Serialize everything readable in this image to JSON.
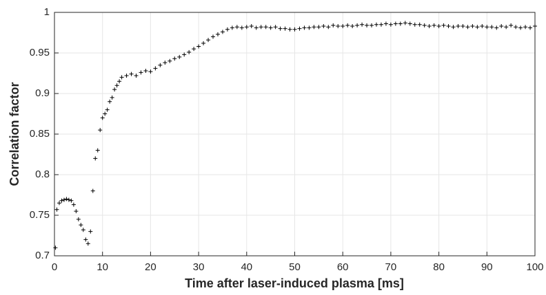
{
  "chart_data": {
    "type": "scatter",
    "marker": "+",
    "color": "#000000",
    "grid": true,
    "xlabel": "Time after laser-induced plasma [ms]",
    "ylabel": "Correlation factor",
    "xlim": [
      0,
      100
    ],
    "xticks": [
      0,
      10,
      20,
      30,
      40,
      50,
      60,
      70,
      80,
      90,
      100
    ],
    "ylim": [
      0.7,
      1
    ],
    "yticks": [
      0.7,
      0.75,
      0.8,
      0.85,
      0.9,
      0.95,
      1
    ],
    "series": [
      {
        "x": [
          0.2,
          0.5,
          1,
          1.5,
          2,
          2.5,
          3,
          3.5,
          4,
          4.5,
          5,
          5.5,
          6,
          6.5,
          7,
          7.5,
          8,
          8.5,
          9,
          9.5,
          10,
          10.5,
          11,
          11.5,
          12,
          12.5,
          13,
          13.5,
          14,
          15,
          16,
          17,
          18,
          19,
          20,
          21,
          22,
          23,
          24,
          25,
          26,
          27,
          28,
          29,
          30,
          31,
          32,
          33,
          34,
          35,
          36,
          37,
          38,
          39,
          40,
          41,
          42,
          43,
          44,
          45,
          46,
          47,
          48,
          49,
          50,
          51,
          52,
          53,
          54,
          55,
          56,
          57,
          58,
          59,
          60,
          61,
          62,
          63,
          64,
          65,
          66,
          67,
          68,
          69,
          70,
          71,
          72,
          73,
          74,
          75,
          76,
          77,
          78,
          79,
          80,
          81,
          82,
          83,
          84,
          85,
          86,
          87,
          88,
          89,
          90,
          91,
          92,
          93,
          94,
          95,
          96,
          97,
          98,
          99,
          100
        ],
        "values": [
          0.71,
          0.757,
          0.765,
          0.768,
          0.769,
          0.77,
          0.769,
          0.768,
          0.763,
          0.755,
          0.745,
          0.738,
          0.732,
          0.72,
          0.715,
          0.73,
          0.78,
          0.82,
          0.83,
          0.855,
          0.87,
          0.875,
          0.88,
          0.89,
          0.895,
          0.905,
          0.91,
          0.915,
          0.92,
          0.922,
          0.924,
          0.922,
          0.926,
          0.928,
          0.927,
          0.931,
          0.935,
          0.938,
          0.94,
          0.943,
          0.945,
          0.948,
          0.951,
          0.955,
          0.958,
          0.962,
          0.966,
          0.97,
          0.973,
          0.976,
          0.979,
          0.981,
          0.982,
          0.981,
          0.982,
          0.983,
          0.981,
          0.982,
          0.982,
          0.981,
          0.982,
          0.98,
          0.98,
          0.979,
          0.979,
          0.98,
          0.981,
          0.981,
          0.982,
          0.982,
          0.983,
          0.982,
          0.984,
          0.983,
          0.983,
          0.984,
          0.983,
          0.984,
          0.985,
          0.984,
          0.984,
          0.985,
          0.985,
          0.986,
          0.985,
          0.986,
          0.986,
          0.987,
          0.986,
          0.985,
          0.985,
          0.984,
          0.983,
          0.984,
          0.983,
          0.984,
          0.983,
          0.982,
          0.983,
          0.983,
          0.982,
          0.983,
          0.982,
          0.983,
          0.982,
          0.982,
          0.981,
          0.983,
          0.982,
          0.984,
          0.982,
          0.981,
          0.982,
          0.981,
          0.983
        ]
      }
    ]
  }
}
